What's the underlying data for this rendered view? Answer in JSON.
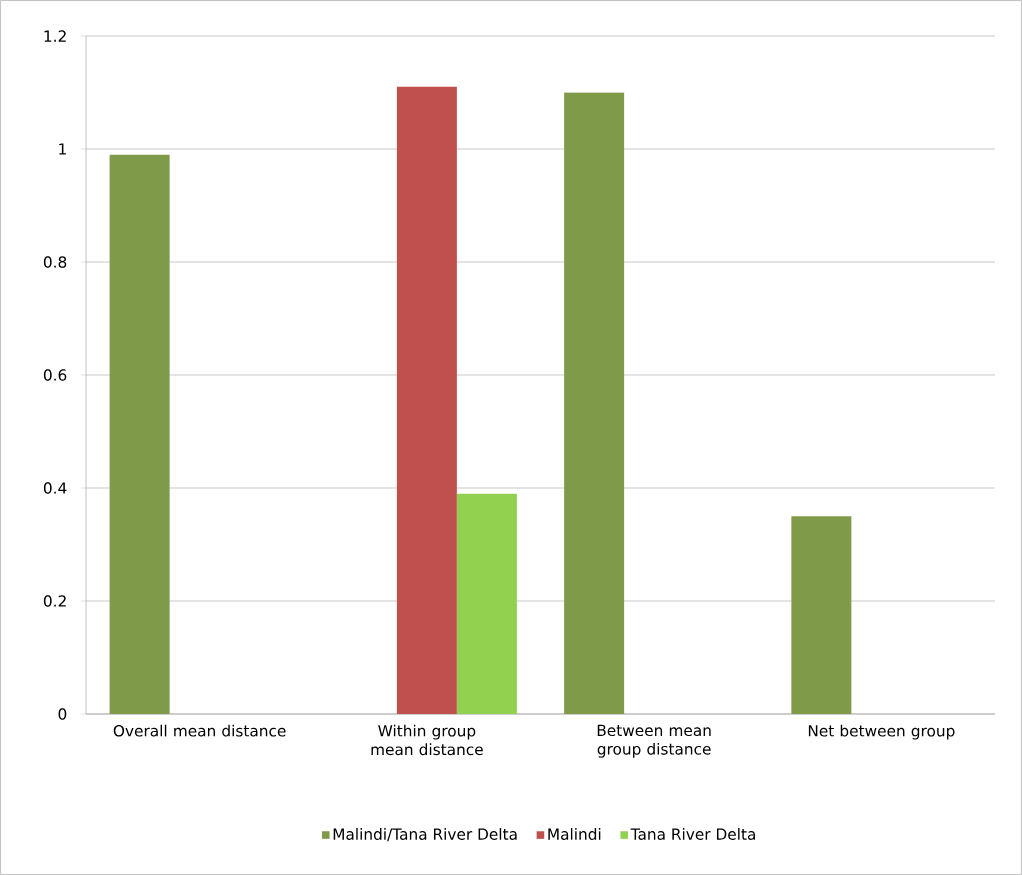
{
  "chart_data": {
    "type": "bar",
    "categories": [
      "Overall mean distance",
      "Within group mean distance",
      "Between mean group distance",
      "Net between group"
    ],
    "series": [
      {
        "name": "Malindi/Tana River Delta",
        "color": "#7f9a48",
        "values": [
          0.99,
          null,
          1.1,
          0.35
        ]
      },
      {
        "name": "Malindi",
        "color": "#c0504d",
        "values": [
          null,
          1.11,
          null,
          null
        ]
      },
      {
        "name": "Tana River Delta",
        "color": "#92d050",
        "values": [
          null,
          0.39,
          null,
          null
        ]
      }
    ],
    "ylim": [
      0,
      1.2
    ],
    "yticks": [
      0,
      0.2,
      0.4,
      0.6,
      0.8,
      1,
      1.2
    ],
    "grid": "y",
    "legend": "bottom"
  }
}
